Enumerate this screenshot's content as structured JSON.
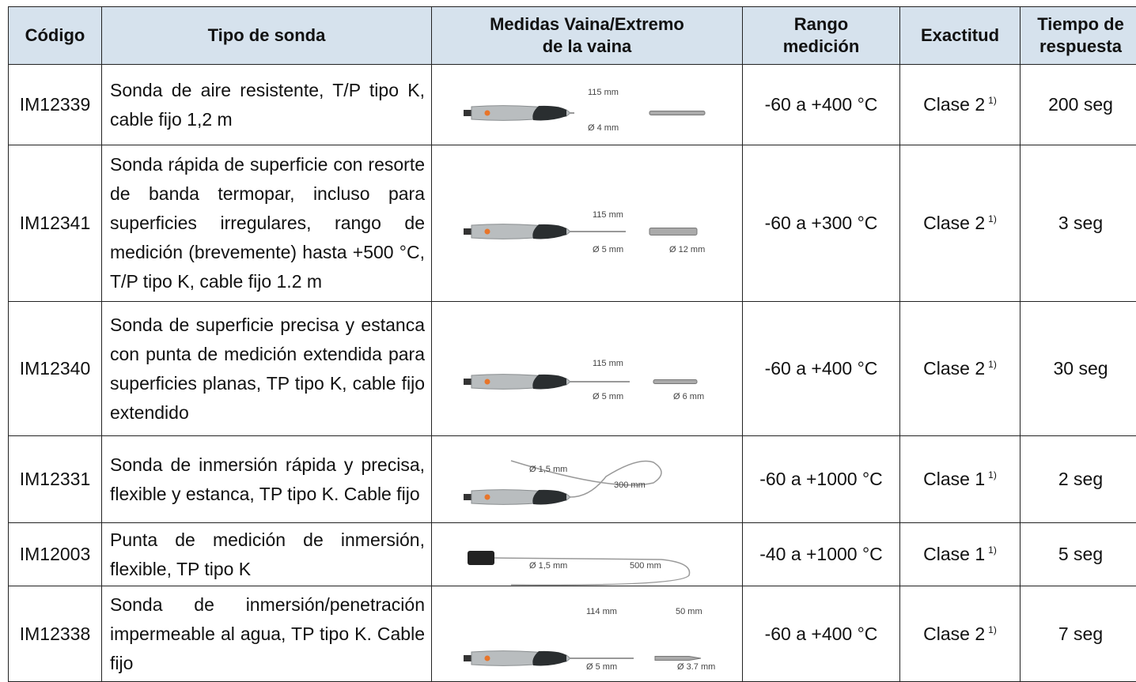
{
  "table": {
    "header": [
      [
        "Código"
      ],
      [
        "Tipo de sonda"
      ],
      [
        "Medidas Vaina/Extremo",
        "de la vaina"
      ],
      [
        "Rango",
        "medición"
      ],
      [
        "Exactitud"
      ],
      [
        "Tiempo de",
        "respuesta"
      ]
    ],
    "rows": [
      {
        "code": "IM12339",
        "description": "Sonda de aire resistente, T/P tipo K, cable fijo 1,2 m",
        "dimensions": [
          "115 mm",
          "Ø 4 mm"
        ],
        "range": "-60 a +400 °C",
        "accuracy": "Clase 2",
        "accuracy_note": "1)",
        "response_time": "200 seg"
      },
      {
        "code": "IM12341",
        "description": "Sonda rápida de superficie con resorte de banda termopar, incluso para superficies irregulares, rango de medición (brevemente) hasta +500 °C, T/P tipo K, cable fijo 1.2 m",
        "dimensions": [
          "115 mm",
          "Ø 5 mm",
          "Ø 12 mm"
        ],
        "range": "-60 a +300 °C",
        "accuracy": "Clase 2",
        "accuracy_note": "1)",
        "response_time": "3 seg"
      },
      {
        "code": "IM12340",
        "description": "Sonda de superficie precisa y estanca con punta de medición extendida para superficies planas, TP tipo K, cable fijo extendido",
        "dimensions": [
          "115 mm",
          "Ø 5 mm",
          "Ø 6 mm"
        ],
        "range": "-60 a +400 °C",
        "accuracy": "Clase 2",
        "accuracy_note": "1)",
        "response_time": "30 seg"
      },
      {
        "code": "IM12331",
        "description": "Sonda de inmersión rápida y precisa, flexible y estanca, TP tipo K. Cable fijo",
        "dimensions": [
          "Ø 1,5 mm",
          "300 mm"
        ],
        "range": "-60 a +1000 °C",
        "accuracy": "Clase 1",
        "accuracy_note": "1)",
        "response_time": "2 seg"
      },
      {
        "code": "IM12003",
        "description": "Punta de medición de inmersión, flexible, TP tipo K",
        "dimensions": [
          "Ø 1,5 mm",
          "500 mm"
        ],
        "range": "-40 a +1000 °C",
        "accuracy": "Clase 1",
        "accuracy_note": "1)",
        "response_time": "5 seg"
      },
      {
        "code": "IM12338",
        "description": "Sonda de inmersión/penetración impermeable al agua, TP tipo K. Cable fijo",
        "dimensions": [
          "114 mm",
          "50 mm",
          "Ø 5 mm",
          "Ø 3.7 mm"
        ],
        "range": "-60 a +400 °C",
        "accuracy": "Clase 2",
        "accuracy_note": "1)",
        "response_time": "7 seg"
      }
    ]
  }
}
